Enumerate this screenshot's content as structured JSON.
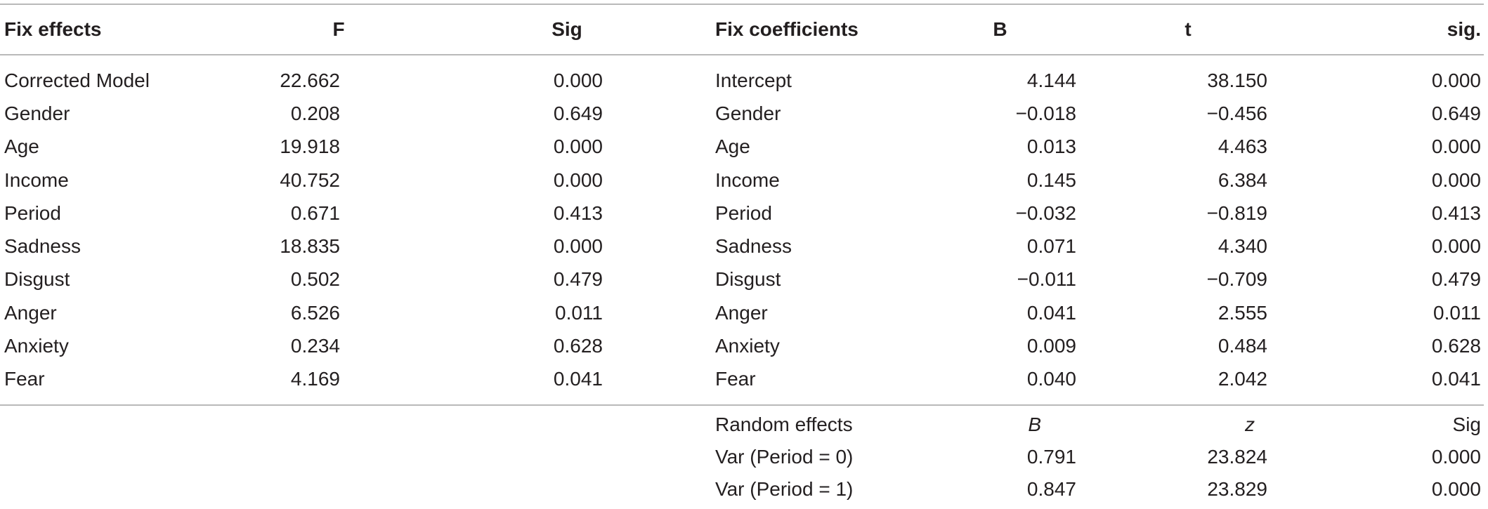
{
  "headers": {
    "left": [
      "Fix effects",
      "F",
      "Sig"
    ],
    "right": [
      "Fix coefficients",
      "B",
      "t",
      "sig."
    ]
  },
  "fixed_rows": [
    {
      "effect": "Corrected Model",
      "F": "22.662",
      "sig": "0.000",
      "coef": "Intercept",
      "B": "4.144",
      "t": "38.150",
      "sig2": "0.000"
    },
    {
      "effect": "Gender",
      "F": "0.208",
      "sig": "0.649",
      "coef": "Gender",
      "B": "−0.018",
      "t": "−0.456",
      "sig2": "0.649"
    },
    {
      "effect": "Age",
      "F": "19.918",
      "sig": "0.000",
      "coef": "Age",
      "B": "0.013",
      "t": "4.463",
      "sig2": "0.000"
    },
    {
      "effect": "Income",
      "F": "40.752",
      "sig": "0.000",
      "coef": "Income",
      "B": "0.145",
      "t": "6.384",
      "sig2": "0.000"
    },
    {
      "effect": "Period",
      "F": "0.671",
      "sig": "0.413",
      "coef": "Period",
      "B": "−0.032",
      "t": "−0.819",
      "sig2": "0.413"
    },
    {
      "effect": "Sadness",
      "F": "18.835",
      "sig": "0.000",
      "coef": "Sadness",
      "B": "0.071",
      "t": "4.340",
      "sig2": "0.000"
    },
    {
      "effect": "Disgust",
      "F": "0.502",
      "sig": "0.479",
      "coef": "Disgust",
      "B": "−0.011",
      "t": "−0.709",
      "sig2": "0.479"
    },
    {
      "effect": "Anger",
      "F": "6.526",
      "sig": "0.011",
      "coef": "Anger",
      "B": "0.041",
      "t": "2.555",
      "sig2": "0.011"
    },
    {
      "effect": "Anxiety",
      "F": "0.234",
      "sig": "0.628",
      "coef": "Anxiety",
      "B": "0.009",
      "t": "0.484",
      "sig2": "0.628"
    },
    {
      "effect": "Fear",
      "F": "4.169",
      "sig": "0.041",
      "coef": "Fear",
      "B": "0.040",
      "t": "2.042",
      "sig2": "0.041"
    }
  ],
  "random": {
    "header": {
      "label": "Random effects",
      "B": "B",
      "z": "z",
      "sig": "Sig"
    },
    "rows": [
      {
        "label": "Var (Period = 0)",
        "B": "0.791",
        "z": "23.824",
        "sig": "0.000"
      },
      {
        "label": "Var (Period = 1)",
        "B": "0.847",
        "z": "23.829",
        "sig": "0.000"
      }
    ]
  }
}
